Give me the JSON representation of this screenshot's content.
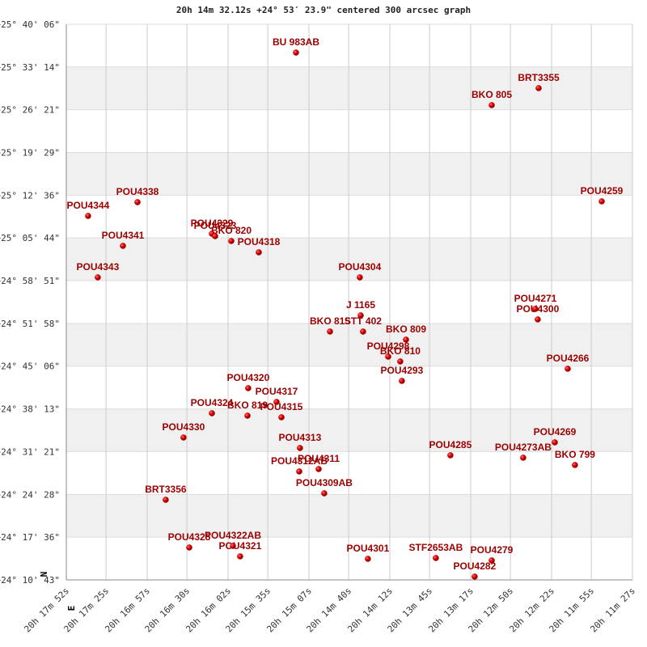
{
  "chart_data": {
    "type": "scatter",
    "title": "20h 14m 32.12s +24° 53′ 23.9\" centered 300 arcsec graph",
    "north_label": "N",
    "east_label": "E",
    "color": "#cc0000",
    "grid": true,
    "xlim": [
      73072,
      72687
    ],
    "xticks": [
      {
        "value": 73072,
        "label": "20h 17m 52s"
      },
      {
        "value": 73045,
        "label": "20h 17m 25s"
      },
      {
        "value": 73017,
        "label": "20h 16m 57s"
      },
      {
        "value": 72990,
        "label": "20h 16m 30s"
      },
      {
        "value": 72962,
        "label": "20h 16m 02s"
      },
      {
        "value": 72935,
        "label": "20h 15m 35s"
      },
      {
        "value": 72907,
        "label": "20h 15m 07s"
      },
      {
        "value": 72880,
        "label": "20h 14m 40s"
      },
      {
        "value": 72852,
        "label": "20h 14m 12s"
      },
      {
        "value": 72825,
        "label": "20h 13m 45s"
      },
      {
        "value": 72797,
        "label": "20h 13m 17s"
      },
      {
        "value": 72770,
        "label": "20h 12m 50s"
      },
      {
        "value": 72742,
        "label": "20h 12m 22s"
      },
      {
        "value": 72715,
        "label": "20h 11m 55s"
      },
      {
        "value": 72687,
        "label": "20h 11m 27s"
      }
    ],
    "ylim": [
      87043,
      92406
    ],
    "yticks": [
      {
        "value": 92406,
        "label": "+25° 40' 06\""
      },
      {
        "value": 91994,
        "label": "+25° 33' 14\""
      },
      {
        "value": 91581,
        "label": "+25° 26' 21\""
      },
      {
        "value": 91169,
        "label": "+25° 19' 29\""
      },
      {
        "value": 90756,
        "label": "+25° 12' 36\""
      },
      {
        "value": 90344,
        "label": "+25° 05' 44\""
      },
      {
        "value": 89931,
        "label": "+24° 58' 51\""
      },
      {
        "value": 89518,
        "label": "+24° 51' 58\""
      },
      {
        "value": 89106,
        "label": "+24° 45' 06\""
      },
      {
        "value": 88693,
        "label": "+24° 38' 13\""
      },
      {
        "value": 88281,
        "label": "+24° 31' 21\""
      },
      {
        "value": 87868,
        "label": "+24° 24' 28\""
      },
      {
        "value": 87456,
        "label": "+24° 17' 36\""
      },
      {
        "value": 87043,
        "label": "+24° 10' 43\""
      }
    ],
    "points": [
      {
        "label": "BU  983AB",
        "x": 72915.8,
        "y": 92132.8
      },
      {
        "label": "BRT3355",
        "x": 72750.8,
        "y": 91789.3
      },
      {
        "label": "BKO 805",
        "x": 72782.7,
        "y": 91625.4
      },
      {
        "label": "POU4259",
        "x": 72707.9,
        "y": 90696.5
      },
      {
        "label": "POU4344",
        "x": 73057.2,
        "y": 90556.0
      },
      {
        "label": "POU4338",
        "x": 73023.6,
        "y": 90688.7
      },
      {
        "label": "POU4329",
        "x": 72973.0,
        "y": 90384.2
      },
      {
        "label": "POU4323",
        "x": 72970.8,
        "y": 90360.8
      },
      {
        "label": "BKO 820",
        "x": 72959.8,
        "y": 90314.0
      },
      {
        "label": "POU4341",
        "x": 73033.5,
        "y": 90267.2
      },
      {
        "label": "POU4318",
        "x": 72941.1,
        "y": 90204.7
      },
      {
        "label": "POU4343",
        "x": 73050.6,
        "y": 89962.7
      },
      {
        "label": "POU4304",
        "x": 72872.4,
        "y": 89962.7
      },
      {
        "label": "J  1165",
        "x": 72871.8,
        "y": 89595.8
      },
      {
        "label": "STT 402",
        "x": 72870.2,
        "y": 89439.7
      },
      {
        "label": "BKO 815",
        "x": 72892.7,
        "y": 89439.7
      },
      {
        "label": "BKO 809",
        "x": 72841.0,
        "y": 89361.7
      },
      {
        "label": "POU4298",
        "x": 72853.1,
        "y": 89197.7
      },
      {
        "label": "BKO 810",
        "x": 72844.9,
        "y": 89150.9
      },
      {
        "label": "POU4293",
        "x": 72843.8,
        "y": 88963.6
      },
      {
        "label": "POU4271",
        "x": 72753.0,
        "y": 89658.3
      },
      {
        "label": "POU4300",
        "x": 72751.4,
        "y": 89556.8
      },
      {
        "label": "POU4266",
        "x": 72731.0,
        "y": 89080.8
      },
      {
        "label": "POU4320",
        "x": 72948.3,
        "y": 88893.5
      },
      {
        "label": "POU4317",
        "x": 72929.0,
        "y": 88760.6
      },
      {
        "label": "POU4324",
        "x": 72973.0,
        "y": 88651.3
      },
      {
        "label": "BKO 819",
        "x": 72948.8,
        "y": 88627.9
      },
      {
        "label": "POU4315",
        "x": 72925.7,
        "y": 88612.3
      },
      {
        "label": "POU4330",
        "x": 72992.3,
        "y": 88417.1
      },
      {
        "label": "POU4313",
        "x": 72913.1,
        "y": 88315.7
      },
      {
        "label": "POU4285",
        "x": 72810.8,
        "y": 88245.4
      },
      {
        "label": "POU4269",
        "x": 72739.8,
        "y": 88370.3
      },
      {
        "label": "POU4273AB",
        "x": 72761.3,
        "y": 88222.2
      },
      {
        "label": "BKO 799",
        "x": 72726.1,
        "y": 88151.9
      },
      {
        "label": "POU4311",
        "x": 72900.4,
        "y": 88112.7
      },
      {
        "label": "POU4312AB",
        "x": 72913.6,
        "y": 88089.3
      },
      {
        "label": "POU4309AB",
        "x": 72896.6,
        "y": 87878.5
      },
      {
        "label": "BRT3356",
        "x": 73004.4,
        "y": 87816.1
      },
      {
        "label": "POU4325",
        "x": 72988.4,
        "y": 87355.5
      },
      {
        "label": "POU4322AB",
        "x": 72958.7,
        "y": 87371.1
      },
      {
        "label": "POU4321",
        "x": 72953.8,
        "y": 87269.7
      },
      {
        "label": "POU4301",
        "x": 72866.9,
        "y": 87246.2
      },
      {
        "label": "STF2653AB",
        "x": 72820.7,
        "y": 87254.0
      },
      {
        "label": "POU4279",
        "x": 72782.7,
        "y": 87230.6
      },
      {
        "label": "POU4282",
        "x": 72794.3,
        "y": 87074.5
      }
    ]
  }
}
